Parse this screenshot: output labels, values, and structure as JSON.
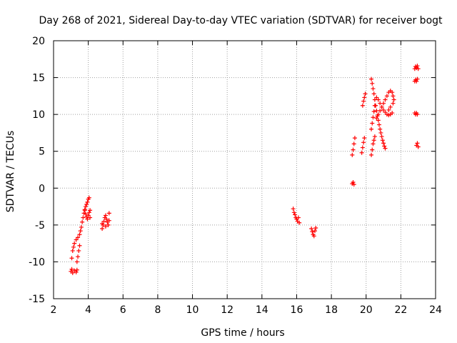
{
  "chart_data": {
    "type": "scatter",
    "title": "Day 268 of 2021, Sidereal Day-to-day VTEC variation (SDTVAR) for receiver bogt",
    "xlabel": "GPS time / hours",
    "ylabel": "SDTVAR / TECUs",
    "xlim": [
      2,
      24
    ],
    "ylim": [
      -15,
      20
    ],
    "xticks": [
      "2",
      "4",
      "6",
      "8",
      "10",
      "12",
      "14",
      "16",
      "18",
      "20",
      "22",
      "24"
    ],
    "yticks": [
      "20",
      "15",
      "10",
      "5",
      "0",
      "-5",
      "-10",
      "-15"
    ],
    "grid": true,
    "marker": "+",
    "colors": {
      "points": "#ff0000",
      "grid": "#a0a0a0",
      "axes": "#000000"
    },
    "series": [
      {
        "name": "bogt",
        "points": [
          [
            3.0,
            -11.3
          ],
          [
            3.1,
            -11.5
          ],
          [
            3.2,
            -11.2
          ],
          [
            3.3,
            -11.4
          ],
          [
            3.35,
            -11.1
          ],
          [
            3.05,
            -11.0
          ],
          [
            3.05,
            -9.5
          ],
          [
            3.1,
            -8.5
          ],
          [
            3.15,
            -8.0
          ],
          [
            3.2,
            -7.5
          ],
          [
            3.3,
            -7.0
          ],
          [
            3.4,
            -6.7
          ],
          [
            3.5,
            -6.3
          ],
          [
            3.55,
            -5.8
          ],
          [
            3.6,
            -5.3
          ],
          [
            3.65,
            -4.6
          ],
          [
            3.7,
            -4.0
          ],
          [
            3.75,
            -3.4
          ],
          [
            3.8,
            -2.9
          ],
          [
            3.85,
            -2.5
          ],
          [
            3.9,
            -2.2
          ],
          [
            3.95,
            -1.9
          ],
          [
            4.0,
            -1.5
          ],
          [
            4.05,
            -1.3
          ],
          [
            3.8,
            -3.0
          ],
          [
            3.85,
            -3.5
          ],
          [
            3.9,
            -3.9
          ],
          [
            3.95,
            -4.2
          ],
          [
            4.0,
            -3.7
          ],
          [
            4.05,
            -3.3
          ],
          [
            4.1,
            -3.0
          ],
          [
            4.1,
            -4.0
          ],
          [
            3.45,
            -8.5
          ],
          [
            3.4,
            -9.3
          ],
          [
            3.35,
            -10.0
          ],
          [
            3.5,
            -7.8
          ],
          [
            4.8,
            -5.5
          ],
          [
            4.85,
            -5.0
          ],
          [
            4.9,
            -4.5
          ],
          [
            4.95,
            -4.0
          ],
          [
            5.0,
            -3.7
          ],
          [
            5.05,
            -4.2
          ],
          [
            5.1,
            -4.6
          ],
          [
            5.15,
            -5.0
          ],
          [
            5.2,
            -4.4
          ],
          [
            5.2,
            -3.4
          ],
          [
            4.8,
            -4.8
          ],
          [
            5.0,
            -5.2
          ],
          [
            15.8,
            -2.8
          ],
          [
            15.85,
            -3.3
          ],
          [
            15.9,
            -3.6
          ],
          [
            15.95,
            -4.0
          ],
          [
            16.0,
            -4.2
          ],
          [
            16.05,
            -4.5
          ],
          [
            16.1,
            -4.0
          ],
          [
            16.15,
            -4.7
          ],
          [
            16.85,
            -5.5
          ],
          [
            16.9,
            -5.9
          ],
          [
            16.95,
            -6.3
          ],
          [
            17.0,
            -6.5
          ],
          [
            17.05,
            -5.8
          ],
          [
            17.1,
            -5.4
          ],
          [
            19.2,
            0.6
          ],
          [
            19.25,
            0.8
          ],
          [
            19.3,
            0.5
          ],
          [
            19.2,
            4.5
          ],
          [
            19.25,
            5.2
          ],
          [
            19.3,
            6.0
          ],
          [
            19.35,
            6.8
          ],
          [
            19.75,
            4.8
          ],
          [
            19.8,
            5.5
          ],
          [
            19.85,
            6.2
          ],
          [
            19.9,
            6.8
          ],
          [
            19.8,
            11.2
          ],
          [
            19.85,
            11.8
          ],
          [
            19.9,
            12.3
          ],
          [
            19.95,
            12.8
          ],
          [
            20.3,
            4.5
          ],
          [
            20.35,
            5.2
          ],
          [
            20.4,
            6.0
          ],
          [
            20.45,
            6.5
          ],
          [
            20.5,
            7.0
          ],
          [
            20.3,
            8.0
          ],
          [
            20.35,
            8.8
          ],
          [
            20.4,
            9.6
          ],
          [
            20.45,
            10.4
          ],
          [
            20.5,
            11.2
          ],
          [
            20.3,
            14.8
          ],
          [
            20.35,
            14.2
          ],
          [
            20.4,
            13.5
          ],
          [
            20.45,
            12.8
          ],
          [
            20.5,
            12.0
          ],
          [
            20.55,
            11.2
          ],
          [
            20.6,
            10.5
          ],
          [
            20.65,
            9.8
          ],
          [
            20.7,
            9.2
          ],
          [
            20.75,
            8.6
          ],
          [
            20.8,
            8.0
          ],
          [
            20.85,
            7.5
          ],
          [
            20.9,
            7.0
          ],
          [
            20.95,
            6.5
          ],
          [
            21.0,
            6.1
          ],
          [
            21.05,
            5.7
          ],
          [
            21.1,
            5.4
          ],
          [
            20.6,
            12.3
          ],
          [
            20.7,
            12.0
          ],
          [
            20.8,
            11.5
          ],
          [
            20.9,
            11.0
          ],
          [
            21.0,
            10.6
          ],
          [
            21.1,
            10.3
          ],
          [
            21.2,
            10.0
          ],
          [
            21.3,
            9.9
          ],
          [
            21.4,
            10.0
          ],
          [
            21.5,
            10.2
          ],
          [
            20.6,
            9.5
          ],
          [
            20.7,
            10.0
          ],
          [
            20.8,
            10.5
          ],
          [
            20.9,
            11.0
          ],
          [
            21.0,
            11.5
          ],
          [
            21.1,
            12.0
          ],
          [
            21.2,
            12.5
          ],
          [
            21.3,
            13.0
          ],
          [
            21.4,
            13.2
          ],
          [
            21.5,
            13.0
          ],
          [
            21.55,
            12.5
          ],
          [
            21.6,
            12.0
          ],
          [
            21.55,
            11.5
          ],
          [
            21.4,
            11.0
          ],
          [
            21.3,
            10.6
          ],
          [
            22.8,
            16.2
          ],
          [
            22.85,
            16.5
          ],
          [
            22.9,
            16.3
          ],
          [
            22.95,
            16.6
          ],
          [
            23.0,
            16.2
          ],
          [
            22.8,
            14.5
          ],
          [
            22.85,
            14.7
          ],
          [
            22.9,
            14.5
          ],
          [
            22.95,
            14.8
          ],
          [
            22.8,
            10.2
          ],
          [
            22.85,
            10.0
          ],
          [
            22.9,
            10.2
          ],
          [
            22.95,
            10.0
          ],
          [
            22.9,
            5.8
          ],
          [
            22.95,
            6.1
          ],
          [
            23.0,
            5.6
          ]
        ]
      }
    ]
  }
}
